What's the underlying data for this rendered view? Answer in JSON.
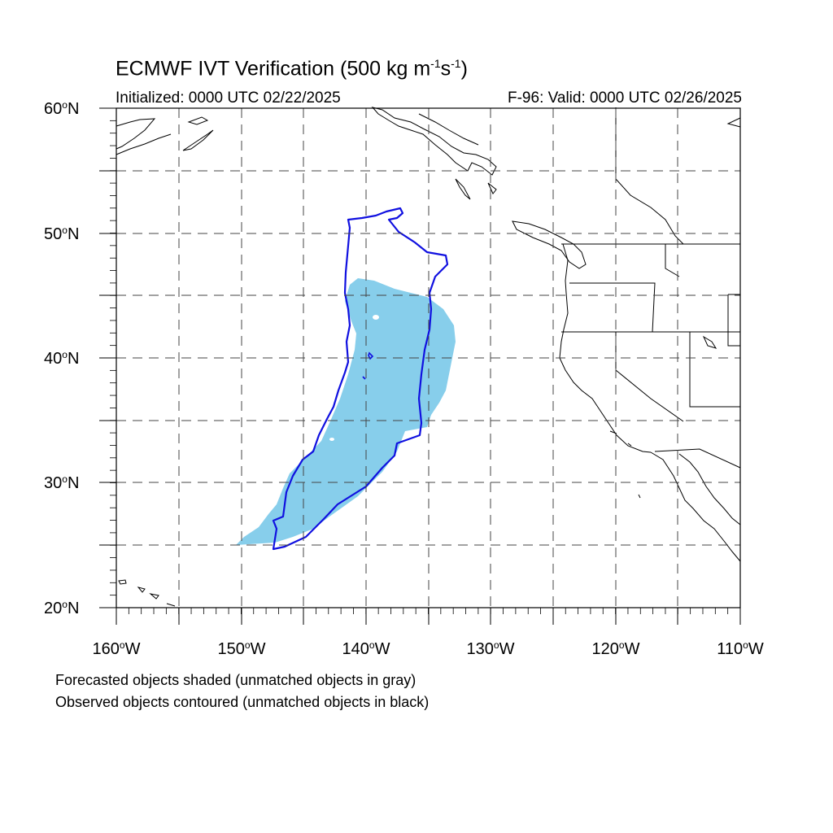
{
  "header": {
    "title_main": "ECMWF IVT Verification (500 kg m",
    "title_exp1": "-1",
    "title_mid": "s",
    "title_exp2": "-1",
    "title_end": ")",
    "initialized": "Initialized: 0000 UTC 02/22/2025",
    "valid": "F-96: Valid: 0000 UTC 02/26/2025"
  },
  "axes": {
    "lat_labels": [
      "60",
      "50",
      "40",
      "30",
      "20"
    ],
    "lat_suffix": "N",
    "lon_labels": [
      "160",
      "150",
      "140",
      "130",
      "120",
      "110"
    ],
    "lon_suffix": "W",
    "lat_range": [
      20,
      60
    ],
    "lon_range": [
      -160,
      -110
    ]
  },
  "legend": {
    "line1": "Forecasted objects shaded (unmatched objects in gray)",
    "line2": "Observed objects contoured (unmatched objects in black)"
  },
  "colors": {
    "forecast_fill": "#87ceeb",
    "observed_contour": "#1010e0",
    "coastline": "#000000",
    "grid": "#444444"
  }
}
